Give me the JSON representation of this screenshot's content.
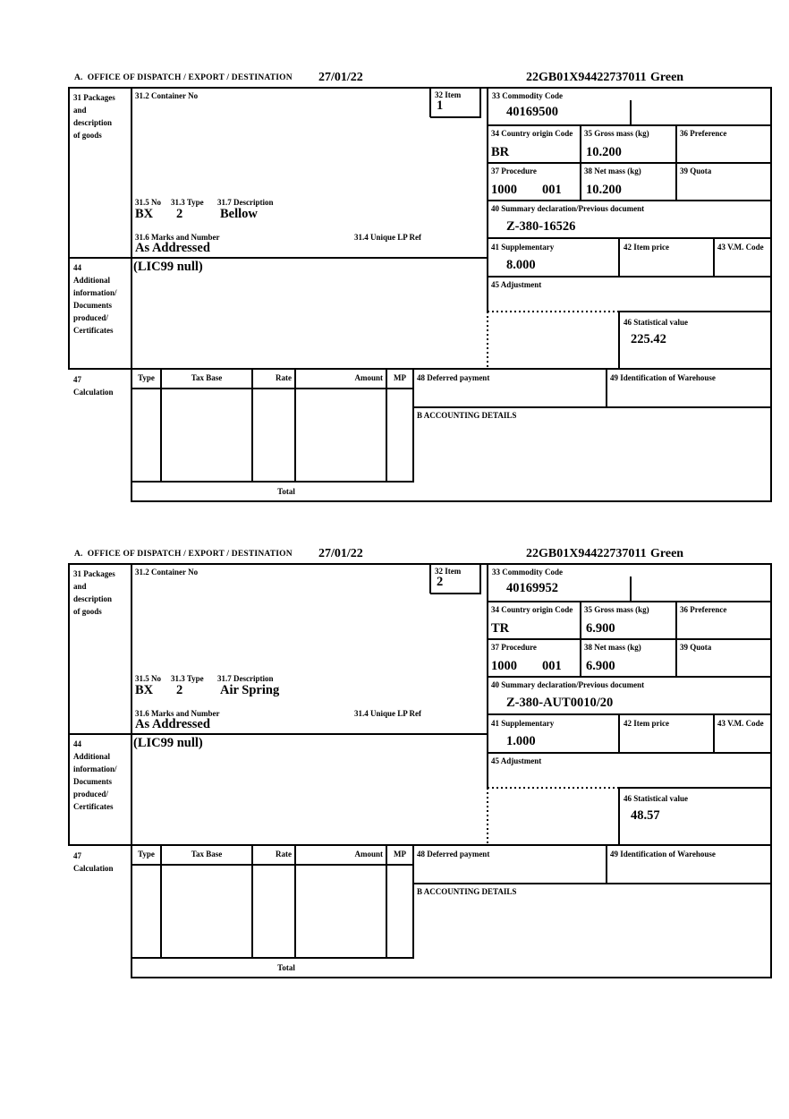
{
  "form": {
    "header": {
      "office_label": "A.  OFFICE OF DISPATCH / EXPORT / DESTINATION",
      "date": "27/01/22",
      "reference": "22GB01X94422737011",
      "routing": "Green"
    },
    "labels": {
      "box31": [
        "31 Packages",
        "and",
        "description",
        "of goods"
      ],
      "box31_2": "31.2 Container No",
      "box32": "32 Item",
      "box33": "33 Commodity Code",
      "box34": "34 Country origin Code",
      "box35": "35 Gross mass (kg)",
      "box36": "36 Preference",
      "box37": "37 Procedure",
      "box38": "38 Net mass (kg)",
      "box39": "39 Quota",
      "box40": "40 Summary declaration/Previous document",
      "box41": "41 Supplementary",
      "box42": "42 Item price",
      "box43": "43 V.M. Code",
      "box31_5": "31.5 No",
      "box31_3": "31.3 Type",
      "box31_7": "31.7 Description",
      "box31_6": "31.6 Marks and Number",
      "box31_4": "31.4 Unique LP Ref",
      "box44": [
        "44",
        "Additional",
        "information/",
        "Documents",
        "produced/",
        "Certificates"
      ],
      "box45": "45 Adjustment",
      "box46": "46 Statistical value",
      "box47": [
        "47",
        "Calculation"
      ],
      "calc_columns": [
        "Type",
        "Tax Base",
        "Rate",
        "Amount",
        "MP"
      ],
      "box48": "48 Deferred payment",
      "box49": "49 Identification of Warehouse",
      "accounting": "B ACCOUNTING DETAILS",
      "total": "Total"
    }
  },
  "items": [
    {
      "item_number": "1",
      "commodity_code": "40169500",
      "country_origin_code": "BR",
      "gross_mass_kg": "10.200",
      "procedure_code": "1000",
      "procedure_code_2": "001",
      "net_mass_kg": "10.200",
      "summary_declaration": "Z-380-16526",
      "supplementary": "8.000",
      "packages_no": "BX",
      "packages_type": "2",
      "description": "Bellow",
      "marks_and_number": "As Addressed",
      "additional_information": "(LIC99 null)",
      "statistical_value": "225.42"
    },
    {
      "item_number": "2",
      "commodity_code": "40169952",
      "country_origin_code": "TR",
      "gross_mass_kg": "6.900",
      "procedure_code": "1000",
      "procedure_code_2": "001",
      "net_mass_kg": "6.900",
      "summary_declaration": "Z-380-AUT0010/20",
      "supplementary": "1.000",
      "packages_no": "BX",
      "packages_type": "2",
      "description": "Air Spring",
      "marks_and_number": "As Addressed",
      "additional_information": "(LIC99 null)",
      "statistical_value": "48.57"
    }
  ]
}
